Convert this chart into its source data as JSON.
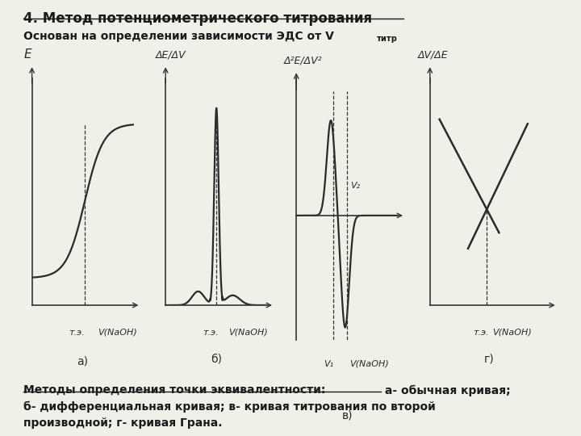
{
  "title": "4. Метод потенциометрического титрования",
  "subtitle": "Основан на определении зависимости ЭДС от V",
  "subtitle_subscript": "титр",
  "bg_color": "#f0efe8",
  "text_color": "#1a1a1a",
  "plot_labels": [
    "а)",
    "б)",
    "в)",
    "г)"
  ],
  "y_labels": [
    "E",
    "ΔE/ΔV",
    "Δ²E/ΔV²",
    "ΔV/ΔE"
  ],
  "x_label": "V(NaOH)",
  "te_label": "т.э.",
  "v1_label": "V₁",
  "v2_label": "V₂",
  "bottom_text_underlined": "Методы определения точки эквивалентности:",
  "bottom_text_rest1": " а- обычная кривая;",
  "bottom_text_line2": "б- дифференциальная кривая; в- кривая титрования по второй",
  "bottom_text_line3": "производной; г- кривая Грана."
}
